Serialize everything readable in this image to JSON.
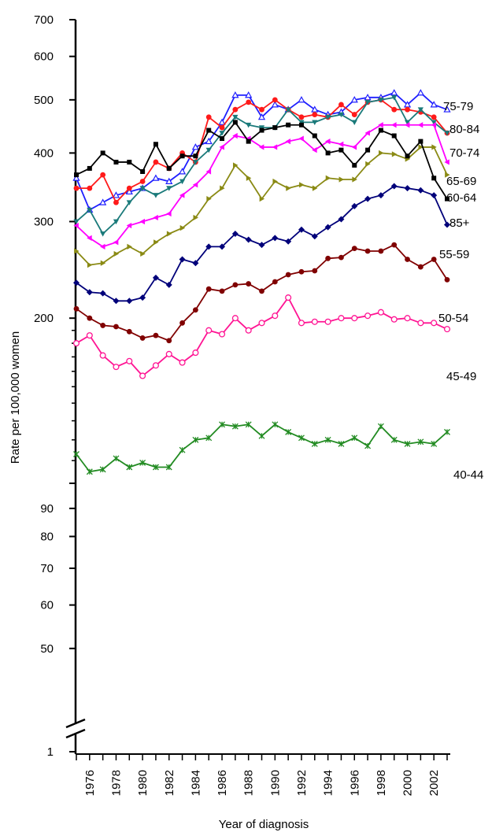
{
  "chart_data": {
    "type": "line",
    "title": "",
    "xlabel": "Year of diagnosis",
    "ylabel": "Rate per 100,000 women",
    "y_scale": "log",
    "y_axis_break": "between 1 and 50",
    "yticks": [
      1,
      50,
      60,
      70,
      80,
      90,
      100,
      200,
      300,
      400,
      500,
      600,
      700
    ],
    "ytick_labels": [
      "1",
      "50",
      "60",
      "70",
      "80",
      "90",
      "",
      "200",
      "300",
      "400",
      "500",
      "600",
      "700"
    ],
    "x": [
      1975,
      1976,
      1977,
      1978,
      1979,
      1980,
      1981,
      1982,
      1983,
      1984,
      1985,
      1986,
      1987,
      1988,
      1989,
      1990,
      1991,
      1992,
      1993,
      1994,
      1995,
      1996,
      1997,
      1998,
      1999,
      2000,
      2001,
      2002,
      2003
    ],
    "xticks": [
      1976,
      1978,
      1980,
      1982,
      1984,
      1986,
      1988,
      1990,
      1992,
      1994,
      1996,
      1998,
      2000,
      2002
    ],
    "xlim": [
      1975,
      2003
    ],
    "grid": false,
    "legend": "labels at right end of each line",
    "series": [
      {
        "name": "75-79",
        "color": "#1f1fff",
        "marker": "open-triangle",
        "values": [
          360,
          315,
          325,
          335,
          340,
          345,
          360,
          355,
          370,
          410,
          420,
          455,
          510,
          510,
          465,
          490,
          480,
          500,
          480,
          470,
          475,
          500,
          505,
          505,
          515,
          490,
          515,
          490,
          480
        ]
      },
      {
        "name": "80-84",
        "color": "#ff1a1a",
        "marker": "circle",
        "values": [
          345,
          345,
          365,
          325,
          345,
          355,
          385,
          375,
          400,
          385,
          465,
          445,
          480,
          495,
          480,
          500,
          480,
          465,
          470,
          465,
          490,
          470,
          495,
          500,
          480,
          480,
          475,
          465,
          435
        ]
      },
      {
        "name": "70-74",
        "color": "#1a7a7a",
        "marker": "down-triangle",
        "values": [
          300,
          315,
          285,
          300,
          325,
          345,
          335,
          345,
          355,
          385,
          405,
          435,
          465,
          450,
          445,
          445,
          480,
          455,
          455,
          465,
          470,
          455,
          495,
          500,
          505,
          455,
          480,
          455,
          435
        ]
      },
      {
        "name": "65-69",
        "color": "#ff00ff",
        "marker": "left-triangle",
        "values": [
          295,
          280,
          270,
          275,
          295,
          300,
          305,
          310,
          335,
          350,
          370,
          410,
          430,
          425,
          410,
          410,
          420,
          425,
          405,
          420,
          415,
          410,
          435,
          450,
          450,
          450,
          450,
          450,
          385
        ]
      },
      {
        "name": "60-64",
        "color": "#8a8a14",
        "marker": "right-triangle",
        "values": [
          265,
          250,
          252,
          262,
          270,
          262,
          275,
          285,
          292,
          305,
          330,
          345,
          380,
          360,
          330,
          355,
          345,
          350,
          345,
          360,
          358,
          358,
          382,
          400,
          398,
          390,
          410,
          410,
          365
        ]
      },
      {
        "name": "85+",
        "color": "#000000",
        "marker": "square",
        "values": [
          365,
          375,
          400,
          385,
          385,
          370,
          415,
          375,
          395,
          395,
          440,
          425,
          455,
          420,
          440,
          445,
          450,
          450,
          430,
          400,
          405,
          380,
          405,
          440,
          430,
          395,
          420,
          360,
          330
        ]
      },
      {
        "name": "55-59",
        "color": "#00007a",
        "marker": "diamond",
        "values": [
          232,
          223,
          222,
          215,
          215,
          218,
          237,
          230,
          256,
          252,
          270,
          270,
          285,
          278,
          272,
          280,
          276,
          290,
          282,
          293,
          303,
          320,
          330,
          335,
          348,
          345,
          342,
          335,
          296
        ]
      },
      {
        "name": "50-54",
        "color": "#800000",
        "marker": "circle",
        "values": [
          208,
          200,
          194,
          193,
          189,
          184,
          186,
          182,
          196,
          207,
          226,
          224,
          230,
          231,
          224,
          233,
          240,
          243,
          244,
          257,
          258,
          268,
          265,
          265,
          272,
          256,
          248,
          256,
          235
        ]
      },
      {
        "name": "45-49",
        "color": "#ff1493",
        "marker": "open-circle",
        "values": [
          180,
          186,
          171,
          163,
          167,
          157,
          164,
          172,
          166,
          173,
          190,
          187,
          200,
          190,
          196,
          202,
          218,
          196,
          197,
          197,
          200,
          200,
          202,
          205,
          199,
          200,
          196,
          196,
          191
        ]
      },
      {
        "name": "40-44",
        "color": "#228b22",
        "marker": "star",
        "values": [
          113,
          105,
          106,
          111,
          107,
          109,
          107,
          107,
          115,
          120,
          121,
          128,
          127,
          128,
          122,
          128,
          124,
          121,
          118,
          120,
          118,
          121,
          117,
          127,
          120,
          118,
          119,
          118,
          124
        ]
      }
    ]
  }
}
